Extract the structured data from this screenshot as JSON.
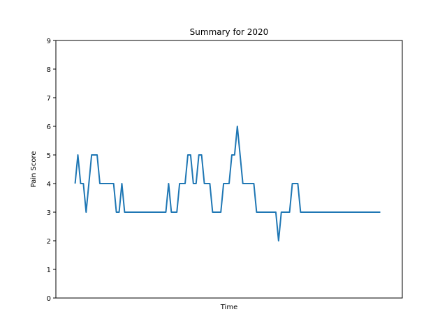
{
  "chart_data": {
    "type": "line",
    "title": "Summary for 2020",
    "xlabel": "Time",
    "ylabel": "Pain Score",
    "ylim": [
      0,
      9
    ],
    "yticks": [
      0,
      1,
      2,
      3,
      4,
      5,
      6,
      7,
      8,
      9
    ],
    "xlim": [
      -7,
      119
    ],
    "grid": false,
    "line_color": "#1f77b4",
    "series": [
      {
        "values": [
          4,
          5,
          4,
          4,
          3,
          4,
          5,
          5,
          5,
          4,
          4,
          4,
          4,
          4,
          4,
          3,
          3,
          4,
          3,
          3,
          3,
          3,
          3,
          3,
          3,
          3,
          3,
          3,
          3,
          3,
          3,
          3,
          3,
          3,
          4,
          3,
          3,
          3,
          4,
          4,
          4,
          5,
          5,
          4,
          4,
          5,
          5,
          4,
          4,
          4,
          3,
          3,
          3,
          3,
          4,
          4,
          4,
          5,
          5,
          6,
          5,
          4,
          4,
          4,
          4,
          4,
          3,
          3,
          3,
          3,
          3,
          3,
          3,
          3,
          2,
          3,
          3,
          3,
          3,
          4,
          4,
          4,
          3,
          3,
          3,
          3,
          3,
          3,
          3,
          3,
          3,
          3,
          3,
          3,
          3,
          3,
          3,
          3,
          3,
          3,
          3,
          3,
          3,
          3,
          3,
          3,
          3,
          3,
          3,
          3,
          3,
          3
        ]
      }
    ]
  }
}
